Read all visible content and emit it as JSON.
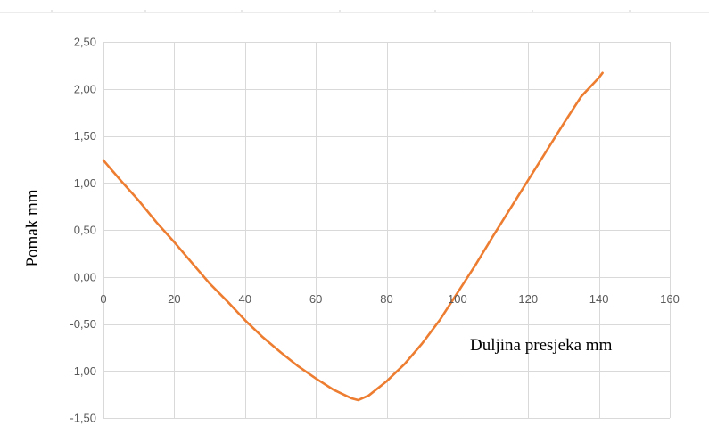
{
  "chart_data": {
    "type": "line",
    "xlabel": "Duljina presjeka  mm",
    "ylabel": "Pomak  mm",
    "xlim": [
      0,
      160
    ],
    "ylim": [
      -1.5,
      2.5
    ],
    "x_ticks": [
      0,
      20,
      40,
      60,
      80,
      100,
      120,
      140,
      160
    ],
    "x_tick_labels": [
      "0",
      "20",
      "40",
      "60",
      "80",
      "100",
      "120",
      "140",
      "160"
    ],
    "y_ticks": [
      2.5,
      2.0,
      1.5,
      1.0,
      0.5,
      0.0,
      -0.5,
      -1.0,
      -1.5
    ],
    "y_tick_labels": [
      "2,50",
      "2,00",
      "1,50",
      "1,00",
      "0,50",
      "0,00",
      "-0,50",
      "-1,00",
      "-1,50"
    ],
    "grid": true,
    "legend": "none",
    "series": [
      {
        "color": "#ED7D31",
        "x": [
          0,
          5,
          10,
          15,
          20,
          25,
          30,
          35,
          40,
          45,
          50,
          55,
          60,
          65,
          70,
          72,
          75,
          80,
          85,
          90,
          95,
          100,
          105,
          110,
          115,
          120,
          125,
          130,
          135,
          140,
          141
        ],
        "y": [
          1.24,
          1.02,
          0.81,
          0.58,
          0.37,
          0.15,
          -0.07,
          -0.26,
          -0.46,
          -0.64,
          -0.8,
          -0.95,
          -1.08,
          -1.2,
          -1.29,
          -1.31,
          -1.26,
          -1.11,
          -0.93,
          -0.71,
          -0.46,
          -0.17,
          0.12,
          0.43,
          0.73,
          1.03,
          1.33,
          1.63,
          1.92,
          2.12,
          2.17
        ]
      }
    ]
  }
}
